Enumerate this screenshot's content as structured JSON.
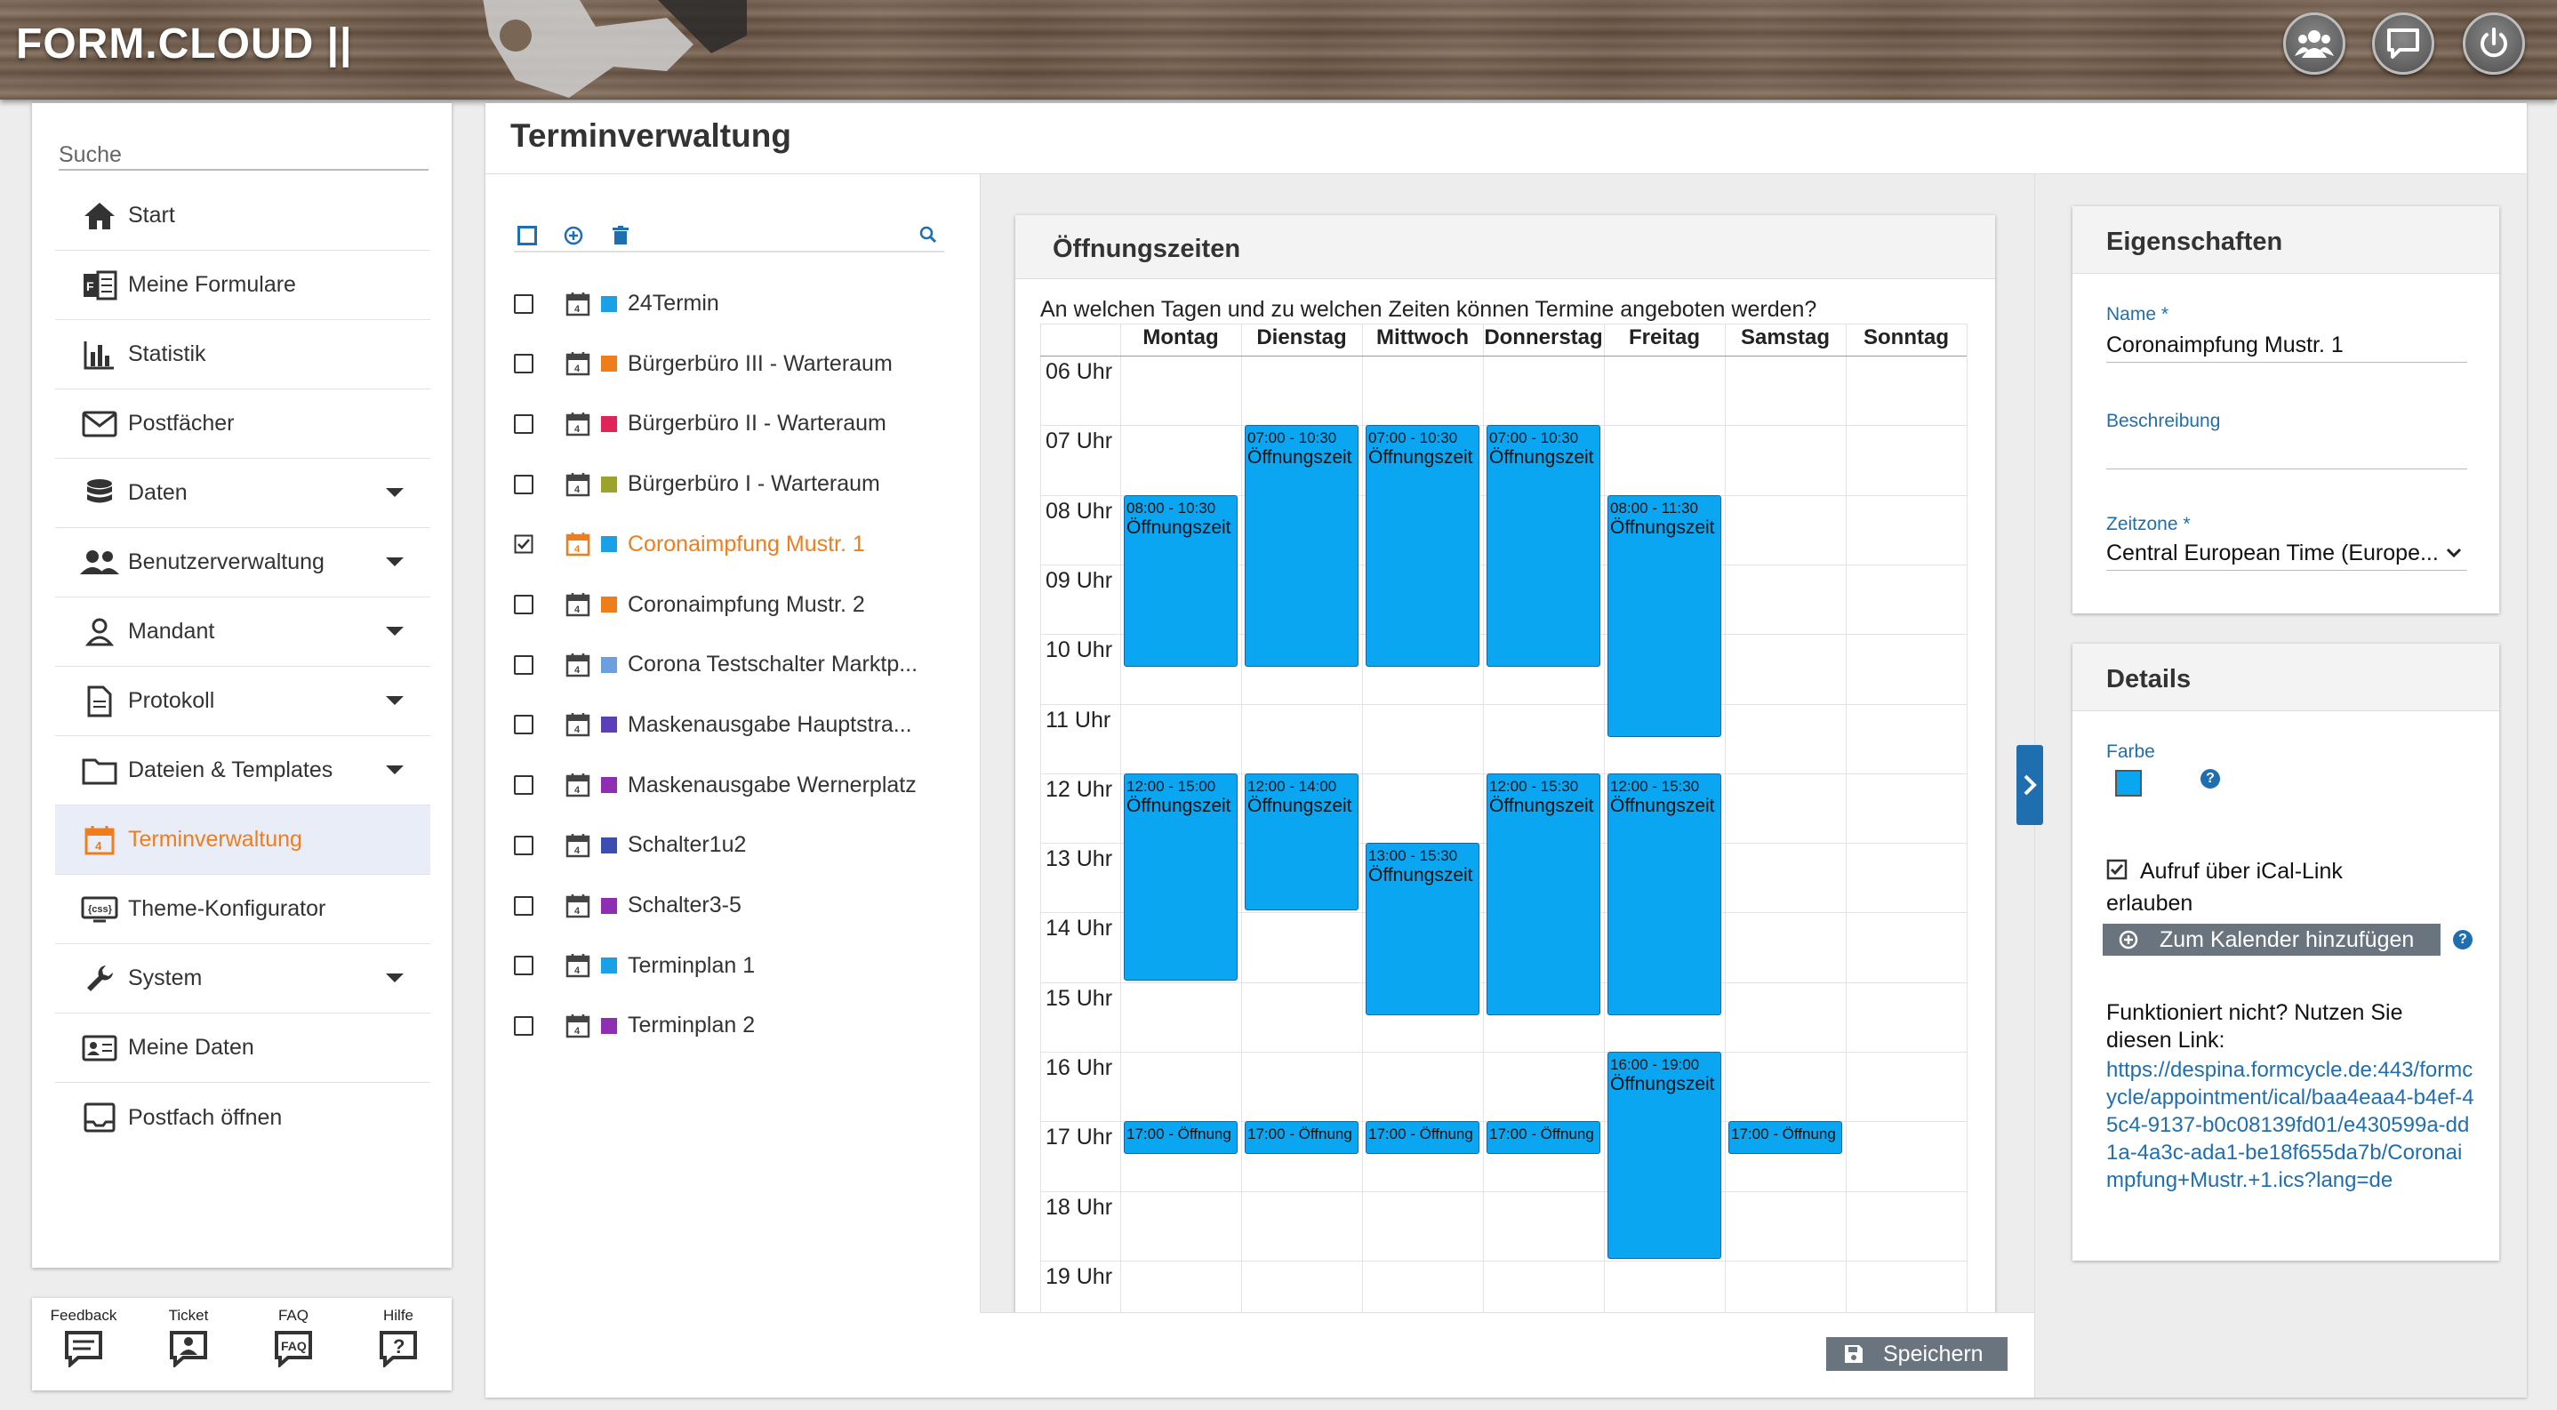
{
  "app": {
    "title": "FORM.CLOUD ||"
  },
  "sidebar": {
    "search_placeholder": "Suche",
    "items": [
      {
        "label": "Start",
        "icon": "home-icon"
      },
      {
        "label": "Meine Formulare",
        "icon": "forms-icon"
      },
      {
        "label": "Statistik",
        "icon": "bar-chart-icon"
      },
      {
        "label": "Postfächer",
        "icon": "mail-icon"
      },
      {
        "label": "Daten",
        "icon": "database-icon"
      },
      {
        "label": "Benutzerverwaltung",
        "icon": "users-icon"
      },
      {
        "label": "Mandant",
        "icon": "person-icon"
      },
      {
        "label": "Protokoll",
        "icon": "document-icon"
      },
      {
        "label": "Dateien & Templates",
        "icon": "folder-icon"
      },
      {
        "label": "Terminverwaltung",
        "icon": "calendar-icon"
      },
      {
        "label": "Theme-Konfigurator",
        "icon": "css-icon"
      },
      {
        "label": "System",
        "icon": "wrench-icon"
      },
      {
        "label": "Meine Daten",
        "icon": "id-card-icon"
      },
      {
        "label": "Postfach öffnen",
        "icon": "inbox-icon"
      }
    ],
    "footer": [
      {
        "label": "Feedback",
        "icon": "feedback-icon"
      },
      {
        "label": "Ticket",
        "icon": "ticket-icon"
      },
      {
        "label": "FAQ",
        "icon": "faq-icon"
      },
      {
        "label": "Hilfe",
        "icon": "help-icon"
      }
    ]
  },
  "page": {
    "title": "Terminverwaltung"
  },
  "planners": [
    {
      "name": "24Termin",
      "color": "#1aa0e6",
      "checked": false,
      "active": false
    },
    {
      "name": "Bürgerbüro III - Warteraum",
      "color": "#f07d1c",
      "checked": false,
      "active": false
    },
    {
      "name": "Bürgerbüro II - Warteraum",
      "color": "#e0245a",
      "checked": false,
      "active": false
    },
    {
      "name": "Bürgerbüro I - Warteraum",
      "color": "#9aa32a",
      "checked": false,
      "active": false
    },
    {
      "name": "Coronaimpfung Mustr. 1",
      "color": "#1aa0e6",
      "checked": true,
      "active": true
    },
    {
      "name": "Coronaimpfung Mustr. 2",
      "color": "#f07d1c",
      "checked": false,
      "active": false
    },
    {
      "name": "Corona Testschalter Marktp...",
      "color": "#6c9fe0",
      "checked": false,
      "active": false
    },
    {
      "name": "Maskenausgabe Hauptstra...",
      "color": "#5a3fb8",
      "checked": false,
      "active": false
    },
    {
      "name": "Maskenausgabe Wernerplatz",
      "color": "#8e2fb3",
      "checked": false,
      "active": false
    },
    {
      "name": "Schalter1u2",
      "color": "#3c4fb0",
      "checked": false,
      "active": false
    },
    {
      "name": "Schalter3-5",
      "color": "#8e2fb3",
      "checked": false,
      "active": false
    },
    {
      "name": "Terminplan 1",
      "color": "#1aa0e6",
      "checked": false,
      "active": false
    },
    {
      "name": "Terminplan 2",
      "color": "#8e2fb3",
      "checked": false,
      "active": false
    }
  ],
  "calendar": {
    "title": "Öffnungszeiten",
    "question": "An welchen Tagen und zu welchen Zeiten können Termine angeboten werden?",
    "days": [
      "Montag",
      "Dienstag",
      "Mittwoch",
      "Donnerstag",
      "Freitag",
      "Samstag",
      "Sonntag"
    ],
    "hours": [
      "06 Uhr",
      "07 Uhr",
      "08 Uhr",
      "09 Uhr",
      "10 Uhr",
      "11 Uhr",
      "12 Uhr",
      "13 Uhr",
      "14 Uhr",
      "15 Uhr",
      "16 Uhr",
      "17 Uhr",
      "18 Uhr",
      "19 Uhr"
    ],
    "event_label": "Öffnungszeit",
    "events": [
      {
        "day": 0,
        "start": 8.0,
        "end": 10.5,
        "time": "08:00 - 10:30",
        "label": "Öffnungszeit"
      },
      {
        "day": 1,
        "start": 7.0,
        "end": 10.5,
        "time": "07:00 - 10:30",
        "label": "Öffnungszeit"
      },
      {
        "day": 2,
        "start": 7.0,
        "end": 10.5,
        "time": "07:00 - 10:30",
        "label": "Öffnungszeit"
      },
      {
        "day": 3,
        "start": 7.0,
        "end": 10.5,
        "time": "07:00 - 10:30",
        "label": "Öffnungszeit"
      },
      {
        "day": 4,
        "start": 8.0,
        "end": 11.5,
        "time": "08:00 - 11:30",
        "label": "Öffnungszeit"
      },
      {
        "day": 0,
        "start": 12.0,
        "end": 15.0,
        "time": "12:00 - 15:00",
        "label": "Öffnungszeit"
      },
      {
        "day": 1,
        "start": 12.0,
        "end": 14.0,
        "time": "12:00 - 14:00",
        "label": "Öffnungszeit"
      },
      {
        "day": 2,
        "start": 13.0,
        "end": 15.5,
        "time": "13:00 - 15:30",
        "label": "Öffnungszeit"
      },
      {
        "day": 3,
        "start": 12.0,
        "end": 15.5,
        "time": "12:00 - 15:30",
        "label": "Öffnungszeit"
      },
      {
        "day": 4,
        "start": 12.0,
        "end": 15.5,
        "time": "12:00 - 15:30",
        "label": "Öffnungszeit"
      },
      {
        "day": 4,
        "start": 16.0,
        "end": 19.0,
        "time": "16:00 - 19:00",
        "label": "Öffnungszeit"
      },
      {
        "day": 0,
        "start": 17.0,
        "end": 17.5,
        "time": "17:00 - Öffnung",
        "label": ""
      },
      {
        "day": 1,
        "start": 17.0,
        "end": 17.5,
        "time": "17:00 - Öffnung",
        "label": ""
      },
      {
        "day": 2,
        "start": 17.0,
        "end": 17.5,
        "time": "17:00 - Öffnung",
        "label": ""
      },
      {
        "day": 3,
        "start": 17.0,
        "end": 17.5,
        "time": "17:00 - Öffnung",
        "label": ""
      },
      {
        "day": 5,
        "start": 17.0,
        "end": 17.5,
        "time": "17:00 - Öffnung",
        "label": ""
      }
    ]
  },
  "save_button": "Speichern",
  "properties": {
    "title": "Eigenschaften",
    "name_label": "Name",
    "name_value": "Coronaimpfung Mustr. 1",
    "description_label": "Beschreibung",
    "description_value": "",
    "timezone_label": "Zeitzone",
    "timezone_value": "Central European Time (Europe...",
    "required_mark": "*"
  },
  "details": {
    "title": "Details",
    "color_label": "Farbe",
    "color_value": "#0aa6f2",
    "ical_label_1": "Aufruf über iCal-Link",
    "ical_label_2": "erlauben",
    "ical_checked": true,
    "add_calendar_button": "Zum Kalender hinzufügen",
    "fallback_text_1": "Funktioniert nicht? Nutzen Sie",
    "fallback_text_2": "diesen Link:",
    "link": "https://despina.formcycle.de:443/formcycle/appointment/ical/baa4eaa4-b4ef-45c4-9137-b0c08139fd01/e430599a-dd1a-4a3c-ada1-be18f655da7b/Coronaimpfung+Mustr.+1.ics?lang=de"
  }
}
